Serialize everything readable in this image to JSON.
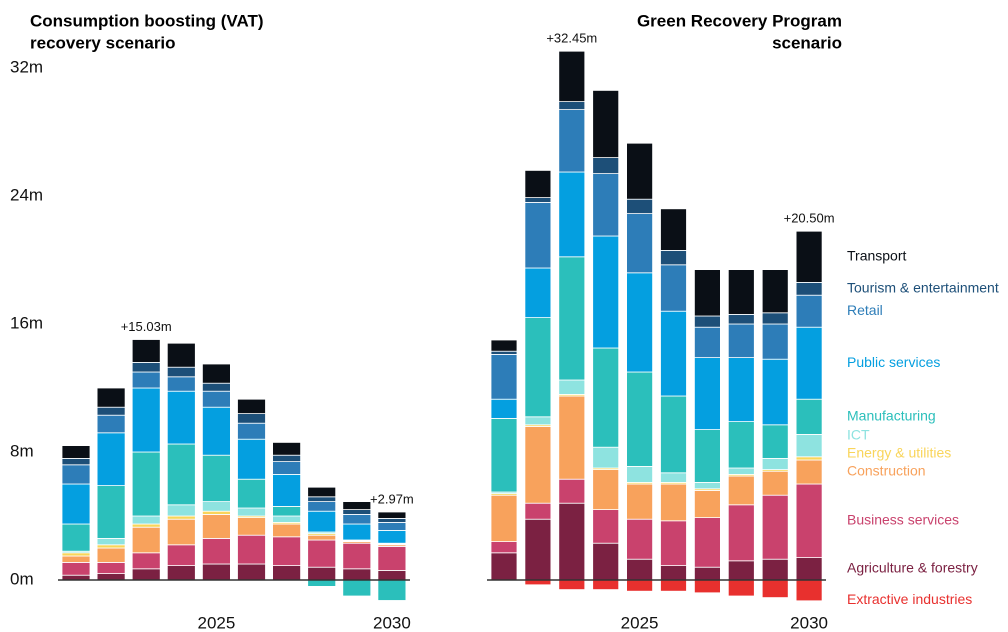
{
  "chart_data": [
    {
      "type": "stacked_bar",
      "title": [
        "Consumption boosting (VAT)",
        "recovery scenario"
      ],
      "categories": [
        null,
        null,
        null,
        null,
        "2025",
        null,
        null,
        null,
        null,
        "2030"
      ],
      "ylim": [
        -1.5,
        33.5
      ],
      "yticks": [
        {
          "value": 0,
          "label": "0m"
        },
        {
          "value": 8,
          "label": "8m"
        },
        {
          "value": 16,
          "label": "16m"
        },
        {
          "value": 24,
          "label": "24m"
        },
        {
          "value": 32,
          "label": "32m"
        }
      ],
      "annotations": [
        {
          "bar": 2,
          "label": "+15.03m",
          "value": 15.03
        },
        {
          "bar": 9,
          "label": "+2.97m",
          "value": 2.97
        }
      ],
      "series": [
        {
          "name": "Agriculture & forestry",
          "color": "#7b2142",
          "values": [
            0.3,
            0.4,
            0.7,
            0.9,
            1.0,
            1.0,
            0.9,
            0.8,
            0.7,
            0.6
          ]
        },
        {
          "name": "Business services",
          "color": "#c9426d",
          "values": [
            0.8,
            0.7,
            1.0,
            1.3,
            1.6,
            1.8,
            1.8,
            1.7,
            1.6,
            1.5
          ]
        },
        {
          "name": "Construction",
          "color": "#f8a25c",
          "values": [
            0.4,
            0.9,
            1.6,
            1.6,
            1.5,
            1.1,
            0.8,
            0.3,
            0.1,
            0.1
          ]
        },
        {
          "name": "Energy & utilities",
          "color": "#f9d55a",
          "values": [
            0.2,
            0.2,
            0.2,
            0.2,
            0.2,
            0.1,
            0.1,
            0.1,
            0.05,
            0.05
          ]
        },
        {
          "name": "ICT",
          "color": "#8ee3e0",
          "values": [
            0.1,
            0.4,
            0.5,
            0.7,
            0.6,
            0.5,
            0.4,
            0.1,
            0.05,
            0.05
          ]
        },
        {
          "name": "Manufacturing",
          "color": "#2bbfbb",
          "values": [
            1.7,
            3.3,
            4.0,
            3.8,
            2.9,
            1.8,
            0.6,
            -0.4,
            -1.0,
            -1.28
          ]
        },
        {
          "name": "Public services",
          "color": "#049fe0",
          "values": [
            2.5,
            3.3,
            4.0,
            3.3,
            3.0,
            2.5,
            2.0,
            1.3,
            1.0,
            0.8
          ]
        },
        {
          "name": "Retail",
          "color": "#2d7db8",
          "values": [
            1.2,
            1.1,
            1.0,
            0.9,
            1.0,
            1.0,
            0.8,
            0.6,
            0.6,
            0.5
          ]
        },
        {
          "name": "Tourism & entertainment",
          "color": "#1d4f78",
          "values": [
            0.4,
            0.5,
            0.6,
            0.6,
            0.5,
            0.6,
            0.4,
            0.3,
            0.3,
            0.25
          ]
        },
        {
          "name": "Transport",
          "color": "#0a0f16",
          "values": [
            0.8,
            1.2,
            1.43,
            1.5,
            1.2,
            0.9,
            0.8,
            0.6,
            0.5,
            0.4
          ]
        }
      ]
    },
    {
      "type": "stacked_bar",
      "title": [
        "Green Recovery Program",
        "scenario"
      ],
      "categories": [
        null,
        null,
        null,
        null,
        "2025",
        null,
        null,
        null,
        null,
        "2030"
      ],
      "ylim": [
        -1.5,
        33.5
      ],
      "legend": "right",
      "annotations": [
        {
          "bar": 2,
          "label": "+32.45m",
          "value": 32.45
        },
        {
          "bar": 9,
          "label": "+20.50m",
          "value": 20.5
        }
      ],
      "series": [
        {
          "name": "Extractive industries",
          "color": "#e8302e",
          "values": [
            -0.05,
            -0.3,
            -0.6,
            -0.6,
            -0.7,
            -0.7,
            -0.8,
            -1.0,
            -1.1,
            -1.3
          ]
        },
        {
          "name": "Agriculture & forestry",
          "color": "#7b2142",
          "values": [
            1.7,
            3.8,
            4.8,
            2.3,
            1.3,
            0.9,
            0.8,
            1.2,
            1.3,
            1.4
          ]
        },
        {
          "name": "Business services",
          "color": "#c9426d",
          "values": [
            0.7,
            1.0,
            1.5,
            2.1,
            2.5,
            2.8,
            3.1,
            3.5,
            4.0,
            4.6
          ]
        },
        {
          "name": "Construction",
          "color": "#f8a25c",
          "values": [
            2.9,
            4.8,
            5.2,
            2.5,
            2.2,
            2.3,
            1.7,
            1.8,
            1.5,
            1.5
          ]
        },
        {
          "name": "Energy & utilities",
          "color": "#f9d55a",
          "values": [
            0.1,
            0.1,
            0.1,
            0.1,
            0.1,
            0.1,
            0.1,
            0.1,
            0.1,
            0.2
          ]
        },
        {
          "name": "ICT",
          "color": "#8ee3e0",
          "values": [
            0.1,
            0.5,
            0.9,
            1.3,
            1.0,
            0.6,
            0.4,
            0.4,
            0.7,
            1.4
          ]
        },
        {
          "name": "Manufacturing",
          "color": "#2bbfbb",
          "values": [
            4.6,
            6.2,
            7.7,
            6.2,
            5.9,
            4.8,
            3.3,
            2.9,
            2.1,
            2.2
          ]
        },
        {
          "name": "Public services",
          "color": "#049fe0",
          "values": [
            1.2,
            3.1,
            5.3,
            7.0,
            6.2,
            5.3,
            4.5,
            4.0,
            4.1,
            4.5
          ]
        },
        {
          "name": "Retail",
          "color": "#2d7db8",
          "values": [
            2.8,
            4.1,
            3.9,
            3.9,
            3.7,
            2.9,
            1.9,
            2.1,
            2.2,
            2.0
          ]
        },
        {
          "name": "Tourism & entertainment",
          "color": "#1d4f78",
          "values": [
            0.2,
            0.3,
            0.5,
            1.0,
            0.9,
            0.9,
            0.7,
            0.6,
            0.7,
            0.8
          ]
        },
        {
          "name": "Transport",
          "color": "#0a0f16",
          "values": [
            0.7,
            1.7,
            3.15,
            4.2,
            3.5,
            2.6,
            2.9,
            2.8,
            2.7,
            3.2
          ]
        }
      ]
    }
  ]
}
